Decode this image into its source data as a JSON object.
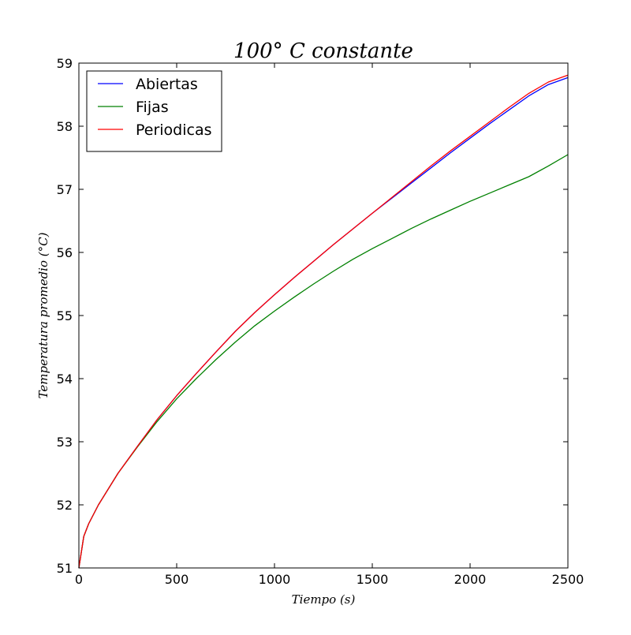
{
  "chart_data": {
    "type": "line",
    "title": "100° C constante",
    "xlabel": "Tiempo (s)",
    "ylabel": "Temperatura promedio (°C)",
    "xlim": [
      0,
      2500
    ],
    "ylim": [
      51,
      59
    ],
    "xticks": [
      0,
      500,
      1000,
      1500,
      2000,
      2500
    ],
    "yticks": [
      51,
      52,
      53,
      54,
      55,
      56,
      57,
      58,
      59
    ],
    "grid": false,
    "legend_position": "top-left",
    "x": [
      0,
      25,
      50,
      100,
      200,
      300,
      400,
      500,
      600,
      700,
      800,
      900,
      1000,
      1100,
      1200,
      1300,
      1400,
      1500,
      1600,
      1700,
      1800,
      1900,
      2000,
      2100,
      2200,
      2300,
      2400,
      2500
    ],
    "series": [
      {
        "name": "Abiertas",
        "color": "#0000ff",
        "values": [
          51.0,
          51.5,
          51.7,
          52.0,
          52.5,
          52.93,
          53.35,
          53.73,
          54.08,
          54.42,
          54.75,
          55.05,
          55.33,
          55.6,
          55.86,
          56.12,
          56.37,
          56.62,
          56.86,
          57.1,
          57.34,
          57.58,
          57.81,
          58.04,
          58.26,
          58.48,
          58.66,
          58.77
        ]
      },
      {
        "name": "Fijas",
        "color": "#008000",
        "values": [
          51.0,
          51.5,
          51.7,
          52.0,
          52.5,
          52.92,
          53.32,
          53.68,
          54.0,
          54.3,
          54.58,
          54.84,
          55.07,
          55.29,
          55.5,
          55.7,
          55.89,
          56.06,
          56.22,
          56.38,
          56.53,
          56.67,
          56.81,
          56.94,
          57.07,
          57.2,
          57.37,
          57.55
        ]
      },
      {
        "name": "Periodicas",
        "color": "#ff0000",
        "values": [
          51.0,
          51.5,
          51.7,
          52.0,
          52.5,
          52.93,
          53.35,
          53.73,
          54.08,
          54.42,
          54.75,
          55.05,
          55.33,
          55.6,
          55.86,
          56.12,
          56.37,
          56.62,
          56.87,
          57.12,
          57.37,
          57.61,
          57.84,
          58.07,
          58.3,
          58.52,
          58.7,
          58.81
        ]
      }
    ]
  }
}
